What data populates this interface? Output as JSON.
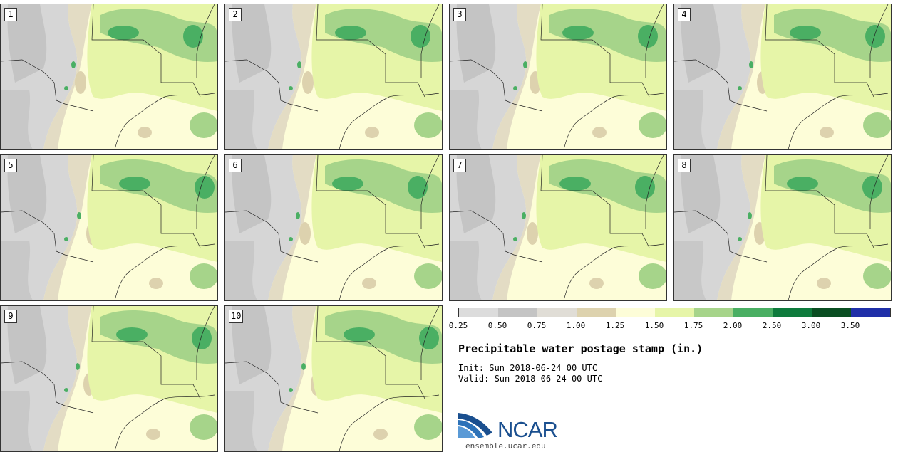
{
  "stamps": [
    {
      "label": "1"
    },
    {
      "label": "2"
    },
    {
      "label": "3"
    },
    {
      "label": "4"
    },
    {
      "label": "5"
    },
    {
      "label": "6"
    },
    {
      "label": "7"
    },
    {
      "label": "8"
    },
    {
      "label": "9"
    },
    {
      "label": "10"
    }
  ],
  "legend": {
    "colors": [
      "#dcdcdc",
      "#c4c4c4",
      "#e0ddd6",
      "#ddd2ae",
      "#fdfdd8",
      "#e6f5a8",
      "#a6d48a",
      "#4aaf63",
      "#0e7b3c",
      "#0a4e22",
      "#1f2fa8"
    ],
    "ticks": [
      "0.25",
      "0.50",
      "0.75",
      "1.00",
      "1.25",
      "1.50",
      "1.75",
      "2.00",
      "2.50",
      "3.00",
      "3.50"
    ]
  },
  "title": "Precipitable water postage stamp (in.)",
  "init": "Init: Sun 2018-06-24 00 UTC",
  "valid": "Valid: Sun 2018-06-24 00 UTC",
  "logo": {
    "name": "NCAR",
    "url": "ensemble.ucar.edu"
  }
}
